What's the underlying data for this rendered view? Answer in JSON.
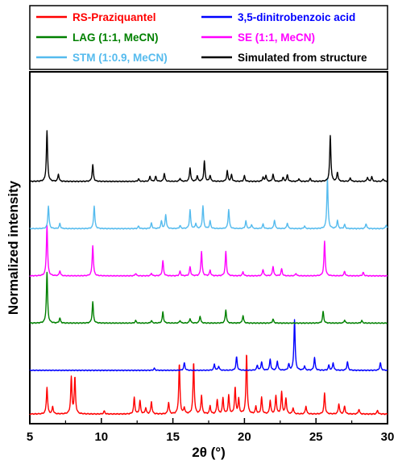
{
  "chart_data": {
    "type": "line",
    "title": "",
    "xlabel": "2θ (°)",
    "ylabel": "Normalized intensity",
    "xlim": [
      5,
      30
    ],
    "xticks": [
      5,
      10,
      15,
      20,
      25,
      30
    ],
    "grid": false,
    "legend": {
      "placement": "top",
      "columns": 2
    },
    "series": [
      {
        "name": "RS-Praziquantel",
        "color": "#ff0000",
        "baseline": 0.0,
        "height": 0.18,
        "peaks": [
          [
            6.2,
            0.44
          ],
          [
            6.6,
            0.12
          ],
          [
            7.9,
            0.6
          ],
          [
            8.15,
            0.6
          ],
          [
            10.2,
            0.05
          ],
          [
            12.3,
            0.27
          ],
          [
            12.7,
            0.22
          ],
          [
            13.1,
            0.1
          ],
          [
            13.5,
            0.2
          ],
          [
            14.7,
            0.19
          ],
          [
            15.45,
            0.83
          ],
          [
            15.8,
            0.1
          ],
          [
            16.45,
            0.85
          ],
          [
            17.0,
            0.3
          ],
          [
            17.6,
            0.13
          ],
          [
            18.1,
            0.24
          ],
          [
            18.5,
            0.26
          ],
          [
            18.9,
            0.3
          ],
          [
            19.35,
            0.43
          ],
          [
            19.6,
            0.24
          ],
          [
            20.15,
            1.0
          ],
          [
            20.8,
            0.12
          ],
          [
            21.2,
            0.27
          ],
          [
            21.8,
            0.22
          ],
          [
            22.2,
            0.3
          ],
          [
            22.6,
            0.36
          ],
          [
            22.9,
            0.26
          ],
          [
            23.4,
            0.1
          ],
          [
            24.3,
            0.13
          ],
          [
            25.6,
            0.34
          ],
          [
            26.6,
            0.17
          ],
          [
            27.0,
            0.13
          ],
          [
            28.0,
            0.08
          ],
          [
            29.3,
            0.06
          ]
        ]
      },
      {
        "name": "3,5-dinitrobenzoic acid",
        "color": "#0000ff",
        "baseline": 0.13,
        "height": 0.15,
        "peaks": [
          [
            13.7,
            0.04
          ],
          [
            15.8,
            0.15
          ],
          [
            17.9,
            0.12
          ],
          [
            18.2,
            0.08
          ],
          [
            19.45,
            0.27
          ],
          [
            20.9,
            0.1
          ],
          [
            21.2,
            0.17
          ],
          [
            21.8,
            0.22
          ],
          [
            22.3,
            0.18
          ],
          [
            23.1,
            0.12
          ],
          [
            23.5,
            1.0
          ],
          [
            24.2,
            0.08
          ],
          [
            24.9,
            0.25
          ],
          [
            25.9,
            0.1
          ],
          [
            26.2,
            0.15
          ],
          [
            27.2,
            0.17
          ],
          [
            29.5,
            0.15
          ]
        ]
      },
      {
        "name": "LAG (1:1, MeCN)",
        "color": "#008000",
        "baseline": 0.27,
        "height": 0.15,
        "peaks": [
          [
            6.2,
            1.0
          ],
          [
            7.1,
            0.1
          ],
          [
            9.4,
            0.42
          ],
          [
            12.4,
            0.05
          ],
          [
            13.5,
            0.05
          ],
          [
            14.3,
            0.22
          ],
          [
            15.5,
            0.05
          ],
          [
            16.2,
            0.09
          ],
          [
            16.9,
            0.14
          ],
          [
            18.7,
            0.26
          ],
          [
            19.9,
            0.15
          ],
          [
            22.0,
            0.08
          ],
          [
            25.5,
            0.23
          ],
          [
            27.0,
            0.06
          ],
          [
            28.2,
            0.05
          ]
        ]
      },
      {
        "name": "SE (1:1, MeCN)",
        "color": "#ff00ff",
        "baseline": 0.41,
        "height": 0.15,
        "peaks": [
          [
            6.2,
            1.0
          ],
          [
            7.1,
            0.1
          ],
          [
            9.4,
            0.6
          ],
          [
            12.4,
            0.05
          ],
          [
            13.5,
            0.05
          ],
          [
            14.3,
            0.3
          ],
          [
            15.5,
            0.09
          ],
          [
            16.2,
            0.18
          ],
          [
            17.0,
            0.48
          ],
          [
            17.6,
            0.11
          ],
          [
            18.7,
            0.48
          ],
          [
            19.9,
            0.08
          ],
          [
            21.3,
            0.13
          ],
          [
            22.0,
            0.19
          ],
          [
            22.6,
            0.14
          ],
          [
            23.6,
            0.05
          ],
          [
            25.6,
            0.68
          ],
          [
            27.0,
            0.09
          ],
          [
            28.3,
            0.07
          ]
        ]
      },
      {
        "name": "STM (1:0.9, MeCN)",
        "color": "#55bbee",
        "baseline": 0.55,
        "height": 0.15,
        "peaks": [
          [
            6.3,
            0.45
          ],
          [
            7.1,
            0.1
          ],
          [
            9.5,
            0.45
          ],
          [
            12.6,
            0.05
          ],
          [
            13.5,
            0.11
          ],
          [
            14.2,
            0.15
          ],
          [
            14.5,
            0.28
          ],
          [
            15.5,
            0.06
          ],
          [
            16.2,
            0.37
          ],
          [
            16.6,
            0.1
          ],
          [
            17.1,
            0.45
          ],
          [
            17.6,
            0.15
          ],
          [
            18.9,
            0.38
          ],
          [
            20.1,
            0.15
          ],
          [
            20.5,
            0.08
          ],
          [
            21.3,
            0.09
          ],
          [
            22.1,
            0.17
          ],
          [
            23.0,
            0.11
          ],
          [
            24.2,
            0.05
          ],
          [
            25.8,
            1.0
          ],
          [
            26.5,
            0.16
          ],
          [
            27.0,
            0.08
          ],
          [
            28.5,
            0.1
          ],
          [
            29.9,
            0.07
          ]
        ]
      },
      {
        "name": "Simulated from structure",
        "color": "#000000",
        "baseline": 0.69,
        "height": 0.15,
        "peaks": [
          [
            6.2,
            1.0
          ],
          [
            7.0,
            0.14
          ],
          [
            9.4,
            0.33
          ],
          [
            12.6,
            0.05
          ],
          [
            13.4,
            0.1
          ],
          [
            13.8,
            0.1
          ],
          [
            14.4,
            0.16
          ],
          [
            15.5,
            0.06
          ],
          [
            16.2,
            0.27
          ],
          [
            16.7,
            0.11
          ],
          [
            17.2,
            0.4
          ],
          [
            17.6,
            0.12
          ],
          [
            18.8,
            0.21
          ],
          [
            19.1,
            0.13
          ],
          [
            20.0,
            0.11
          ],
          [
            21.3,
            0.08
          ],
          [
            21.5,
            0.12
          ],
          [
            22.0,
            0.14
          ],
          [
            22.7,
            0.08
          ],
          [
            23.0,
            0.13
          ],
          [
            23.8,
            0.05
          ],
          [
            24.6,
            0.06
          ],
          [
            26.0,
            0.9
          ],
          [
            26.5,
            0.18
          ],
          [
            27.4,
            0.07
          ],
          [
            28.6,
            0.08
          ],
          [
            28.9,
            0.09
          ],
          [
            29.7,
            0.05
          ]
        ]
      }
    ],
    "legend_items": [
      {
        "label": "RS-Praziquantel",
        "color": "#ff0000"
      },
      {
        "label": "3,5-dinitrobenzoic acid",
        "color": "#0000ff"
      },
      {
        "label": "LAG (1:1, MeCN)",
        "color": "#008000"
      },
      {
        "label": "SE (1:1, MeCN)",
        "color": "#ff00ff"
      },
      {
        "label": "STM (1:0.9, MeCN)",
        "color": "#55bbee"
      },
      {
        "label": "Simulated from structure",
        "color": "#000000"
      }
    ]
  }
}
